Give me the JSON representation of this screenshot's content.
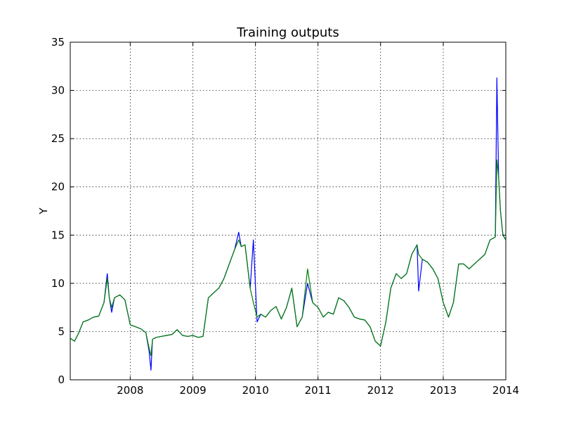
{
  "chart_data": {
    "type": "line",
    "title": "Training outputs",
    "xlabel": "",
    "ylabel": "Y",
    "xlim": [
      "2007-01-16",
      "2014-01-01"
    ],
    "ylim": [
      0,
      35
    ],
    "xticks": [
      {
        "date": "2008-01-01",
        "label": "2008"
      },
      {
        "date": "2009-01-01",
        "label": "2009"
      },
      {
        "date": "2010-01-01",
        "label": "2010"
      },
      {
        "date": "2011-01-01",
        "label": "2011"
      },
      {
        "date": "2012-01-01",
        "label": "2012"
      },
      {
        "date": "2013-01-01",
        "label": "2013"
      },
      {
        "date": "2014-01-01",
        "label": "2014"
      }
    ],
    "yticks": [
      0,
      5,
      10,
      15,
      20,
      25,
      30,
      35
    ],
    "grid": true,
    "colors": {
      "series_1": "#0000ff",
      "series_2": "#007f00"
    },
    "series": [
      {
        "color": "#0000ff",
        "x": [
          "2007-01-16",
          "2007-02-10",
          "2007-03-05",
          "2007-04-01",
          "2007-05-01",
          "2007-06-01",
          "2007-07-01",
          "2007-08-01",
          "2007-08-20",
          "2007-09-01",
          "2007-09-15",
          "2007-10-01",
          "2007-11-01",
          "2007-12-01",
          "2008-01-01",
          "2008-02-01",
          "2008-03-01",
          "2008-04-01",
          "2008-04-20",
          "2008-05-01",
          "2008-05-10",
          "2008-06-01",
          "2008-07-01",
          "2008-08-01",
          "2008-09-01",
          "2008-10-01",
          "2008-11-01",
          "2008-12-01",
          "2009-01-01",
          "2009-02-01",
          "2009-03-01",
          "2009-04-01",
          "2009-05-01",
          "2009-06-01",
          "2009-07-01",
          "2009-08-01",
          "2009-09-01",
          "2009-09-25",
          "2009-10-10",
          "2009-11-01",
          "2009-12-01",
          "2009-12-20",
          "2010-01-10",
          "2010-02-01",
          "2010-03-01",
          "2010-04-01",
          "2010-05-01",
          "2010-06-01",
          "2010-07-01",
          "2010-08-01",
          "2010-09-01",
          "2010-10-01",
          "2010-11-01",
          "2010-12-01",
          "2011-01-01",
          "2011-02-01",
          "2011-03-01",
          "2011-04-01",
          "2011-05-01",
          "2011-06-01",
          "2011-07-01",
          "2011-08-01",
          "2011-09-01",
          "2011-10-01",
          "2011-11-01",
          "2011-12-01",
          "2012-01-01",
          "2012-02-01",
          "2012-03-01",
          "2012-04-01",
          "2012-05-01",
          "2012-06-01",
          "2012-07-01",
          "2012-08-01",
          "2012-08-10",
          "2012-09-01",
          "2012-10-01",
          "2012-11-01",
          "2012-12-01",
          "2013-01-01",
          "2013-02-01",
          "2013-03-01",
          "2013-04-01",
          "2013-05-01",
          "2013-06-01",
          "2013-07-01",
          "2013-08-01",
          "2013-09-01",
          "2013-10-01",
          "2013-11-01",
          "2013-11-10",
          "2013-11-20",
          "2013-12-01",
          "2013-12-15",
          "2014-01-01"
        ],
        "y": [
          4.3,
          4.0,
          4.8,
          6.0,
          6.2,
          6.5,
          6.6,
          8.0,
          11.0,
          8.5,
          7.0,
          8.5,
          8.8,
          8.3,
          5.7,
          5.5,
          5.3,
          4.9,
          3.0,
          1.0,
          4.2,
          4.4,
          4.5,
          4.6,
          4.7,
          5.2,
          4.6,
          4.5,
          4.6,
          4.4,
          4.5,
          8.5,
          9.0,
          9.5,
          10.5,
          12.0,
          13.5,
          15.3,
          13.8,
          14.0,
          9.5,
          14.5,
          6.0,
          6.8,
          6.5,
          7.2,
          7.6,
          6.3,
          7.5,
          9.5,
          5.5,
          6.5,
          10.0,
          8.0,
          7.5,
          6.5,
          7.0,
          6.8,
          8.5,
          8.2,
          7.5,
          6.5,
          6.3,
          6.2,
          5.5,
          4.0,
          3.5,
          6.0,
          9.5,
          11.0,
          10.5,
          11.0,
          13.0,
          14.0,
          9.2,
          12.5,
          12.2,
          11.5,
          10.5,
          8.0,
          6.5,
          8.0,
          12.0,
          12.0,
          11.5,
          12.0,
          12.5,
          13.0,
          14.5,
          14.8,
          31.3,
          21.0,
          17.5,
          15.0,
          14.5
        ]
      },
      {
        "color": "#007f00",
        "x": [
          "2007-01-16",
          "2007-02-10",
          "2007-03-05",
          "2007-04-01",
          "2007-05-01",
          "2007-06-01",
          "2007-07-01",
          "2007-08-01",
          "2007-08-20",
          "2007-09-01",
          "2007-09-15",
          "2007-10-01",
          "2007-11-01",
          "2007-12-01",
          "2008-01-01",
          "2008-02-01",
          "2008-03-01",
          "2008-04-01",
          "2008-04-20",
          "2008-05-01",
          "2008-05-10",
          "2008-06-01",
          "2008-07-01",
          "2008-08-01",
          "2008-09-01",
          "2008-10-01",
          "2008-11-01",
          "2008-12-01",
          "2009-01-01",
          "2009-02-01",
          "2009-03-01",
          "2009-04-01",
          "2009-05-01",
          "2009-06-01",
          "2009-07-01",
          "2009-08-01",
          "2009-09-01",
          "2009-09-25",
          "2009-10-10",
          "2009-11-01",
          "2009-12-01",
          "2009-12-20",
          "2010-01-10",
          "2010-02-01",
          "2010-03-01",
          "2010-04-01",
          "2010-05-01",
          "2010-06-01",
          "2010-07-01",
          "2010-08-01",
          "2010-09-01",
          "2010-10-01",
          "2010-11-01",
          "2010-12-01",
          "2011-01-01",
          "2011-02-01",
          "2011-03-01",
          "2011-04-01",
          "2011-05-01",
          "2011-06-01",
          "2011-07-01",
          "2011-08-01",
          "2011-09-01",
          "2011-10-01",
          "2011-11-01",
          "2011-12-01",
          "2012-01-01",
          "2012-02-01",
          "2012-03-01",
          "2012-04-01",
          "2012-05-01",
          "2012-06-01",
          "2012-07-01",
          "2012-08-01",
          "2012-08-10",
          "2012-09-01",
          "2012-10-01",
          "2012-11-01",
          "2012-12-01",
          "2013-01-01",
          "2013-02-01",
          "2013-03-01",
          "2013-04-01",
          "2013-05-01",
          "2013-06-01",
          "2013-07-01",
          "2013-08-01",
          "2013-09-01",
          "2013-10-01",
          "2013-11-01",
          "2013-11-10",
          "2013-11-20",
          "2013-12-01",
          "2013-12-15",
          "2014-01-01"
        ],
        "y": [
          4.3,
          4.0,
          4.8,
          6.0,
          6.2,
          6.5,
          6.6,
          8.0,
          10.5,
          8.5,
          7.5,
          8.5,
          8.8,
          8.3,
          5.7,
          5.5,
          5.3,
          4.9,
          3.3,
          2.5,
          4.2,
          4.4,
          4.5,
          4.6,
          4.7,
          5.2,
          4.6,
          4.5,
          4.6,
          4.4,
          4.5,
          8.5,
          9.0,
          9.5,
          10.5,
          12.0,
          13.5,
          14.5,
          13.8,
          14.0,
          9.5,
          8.0,
          6.5,
          6.8,
          6.5,
          7.2,
          7.6,
          6.3,
          7.5,
          9.5,
          5.5,
          6.5,
          11.5,
          8.0,
          7.5,
          6.5,
          7.0,
          6.8,
          8.5,
          8.2,
          7.5,
          6.5,
          6.3,
          6.2,
          5.5,
          4.0,
          3.5,
          6.0,
          9.5,
          11.0,
          10.5,
          11.0,
          13.0,
          14.0,
          13.0,
          12.5,
          12.2,
          11.5,
          10.5,
          8.0,
          6.5,
          8.0,
          12.0,
          12.0,
          11.5,
          12.0,
          12.5,
          13.0,
          14.5,
          14.8,
          22.8,
          21.0,
          17.5,
          15.0,
          14.5
        ]
      }
    ]
  }
}
